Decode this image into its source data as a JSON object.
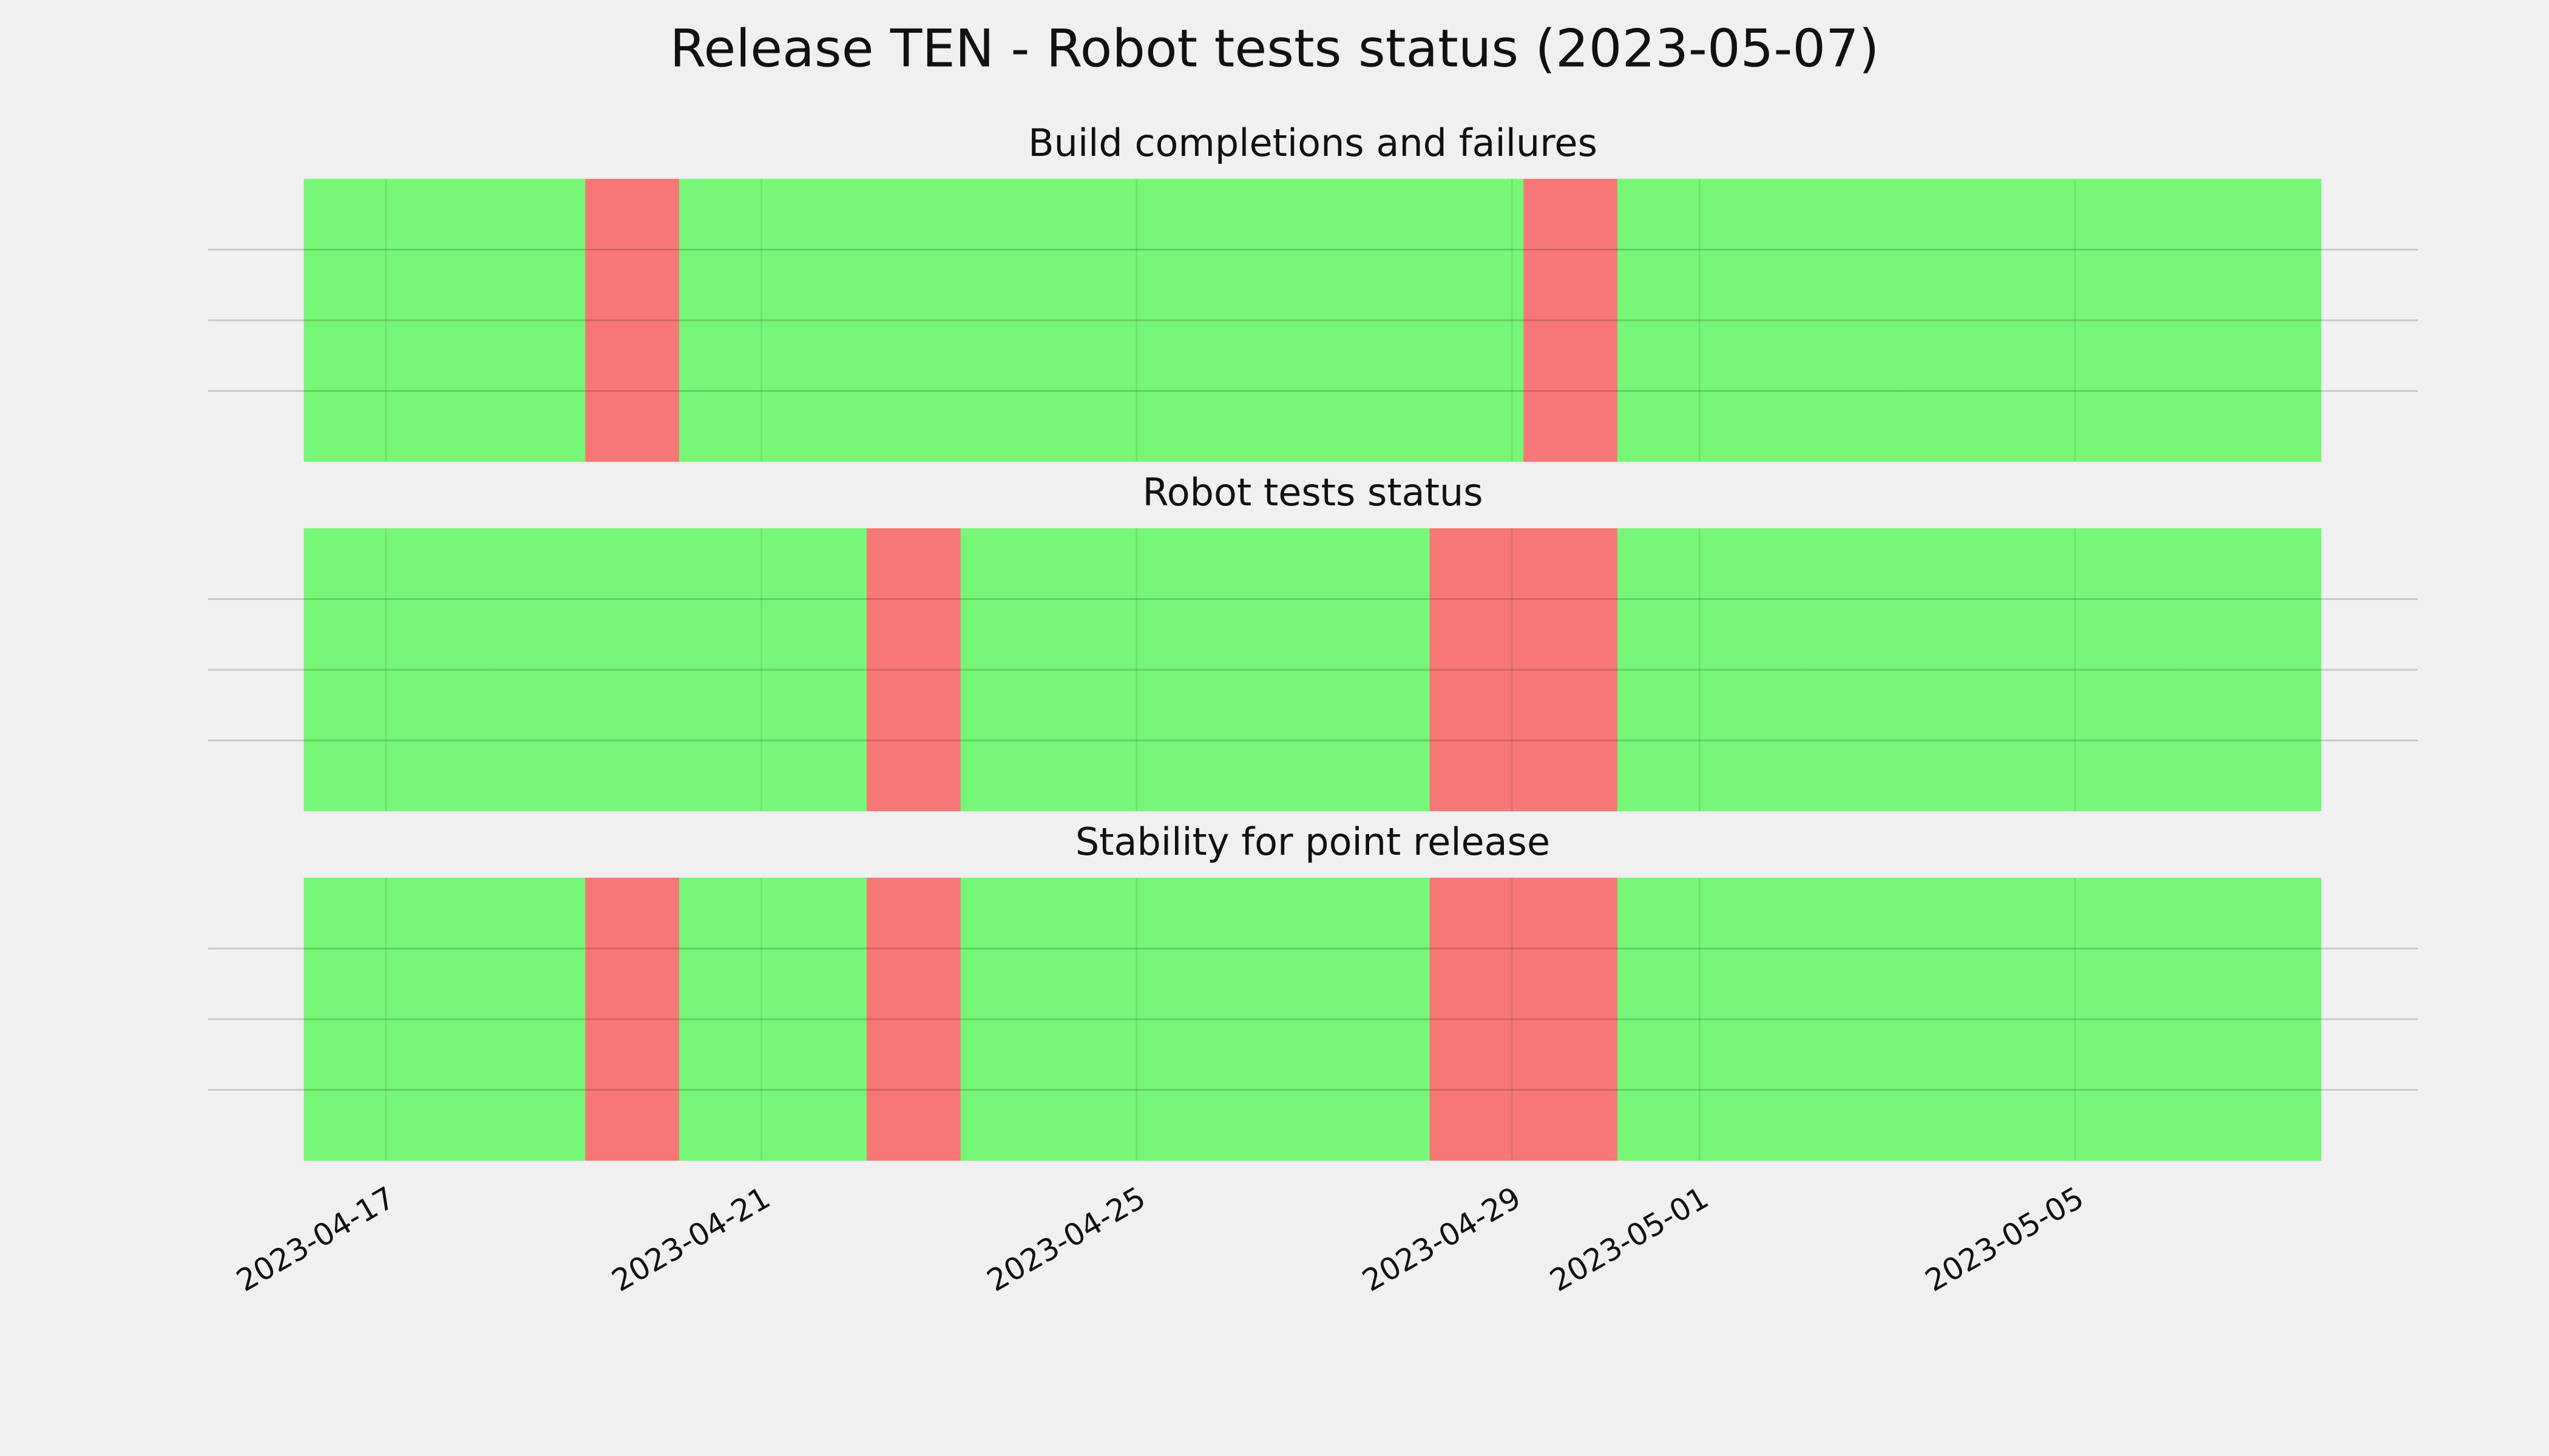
{
  "chart_data": {
    "type": "status-timeline",
    "title": "Release TEN - Robot tests status (2023-05-07)",
    "status_colors": [
      "#f77777",
      "#77f777"
    ],
    "grid": true,
    "xlim": [
      "2023-04-15T02:30",
      "2023-05-08T15:45"
    ],
    "xticks": [
      "2023-04-17",
      "2023-04-21",
      "2023-04-25",
      "2023-04-29",
      "2023-05-01",
      "2023-05-05"
    ],
    "ylim": [
      0,
      1
    ],
    "yticks": [
      0.25,
      0.5,
      0.75
    ],
    "bins": [
      "2023-04-16T03:00",
      "2023-04-17T03:00",
      "2023-04-18T03:00",
      "2023-04-19T03:00",
      "2023-04-20T03:00",
      "2023-04-21T03:00",
      "2023-04-22T03:00",
      "2023-04-23T03:00",
      "2023-04-24T03:00",
      "2023-04-25T03:00",
      "2023-04-26T03:00",
      "2023-04-27T03:00",
      "2023-04-28T03:00",
      "2023-04-29T03:00",
      "2023-04-30T03:00",
      "2023-05-01T03:00",
      "2023-05-02T03:00",
      "2023-05-03T03:00",
      "2023-05-04T03:00",
      "2023-05-05T03:00",
      "2023-05-06T03:00",
      "2023-05-07T03:00",
      "2023-05-07T15:00"
    ],
    "panels": [
      {
        "title": "Build completions and failures",
        "values": [
          1,
          1,
          1,
          0,
          1,
          1,
          1,
          1,
          1,
          1,
          1,
          1,
          1,
          0,
          1,
          1,
          1,
          1,
          1,
          1,
          1,
          1
        ]
      },
      {
        "title": "Robot tests status",
        "values": [
          1,
          1,
          1,
          1,
          1,
          1,
          0,
          1,
          1,
          1,
          1,
          1,
          0,
          0,
          1,
          1,
          1,
          1,
          1,
          1,
          1,
          1
        ]
      },
      {
        "title": "Stability for point release",
        "values": [
          1,
          1,
          1,
          0,
          1,
          1,
          0,
          1,
          1,
          1,
          1,
          1,
          0,
          0,
          1,
          1,
          1,
          1,
          1,
          1,
          1,
          1
        ]
      }
    ]
  }
}
